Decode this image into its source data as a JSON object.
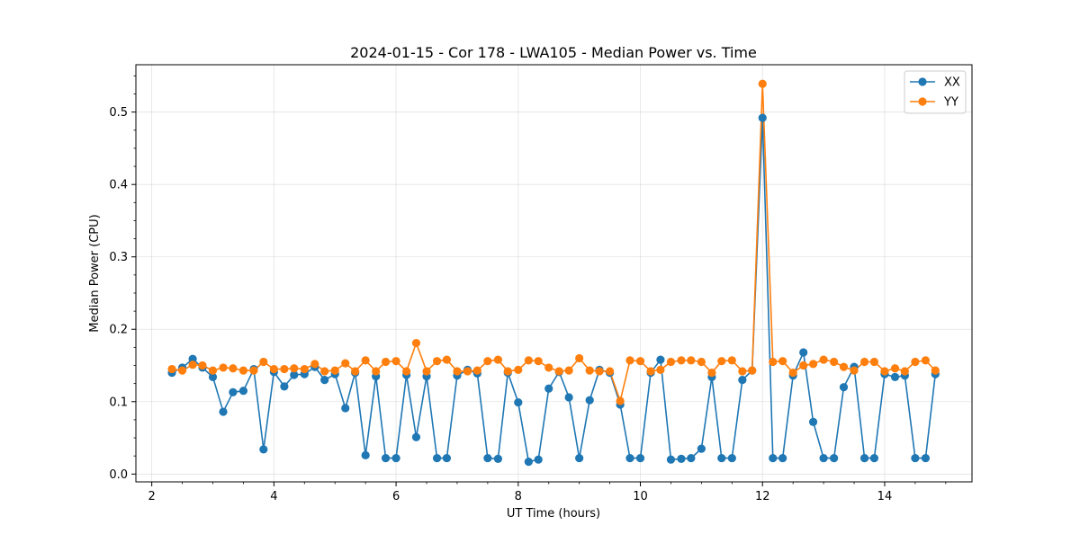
{
  "chart_data": {
    "type": "line",
    "title": "2024-01-15 - Cor 178 - LWA105 - Median Power vs. Time",
    "xlabel": "UT Time (hours)",
    "ylabel": "Median Power (CPU)",
    "xlim": [
      1.74,
      15.43
    ],
    "ylim": [
      -0.0108,
      0.5654
    ],
    "xticks": [
      2,
      4,
      6,
      8,
      10,
      12,
      14
    ],
    "yticks": [
      0.0,
      0.1,
      0.2,
      0.3,
      0.4,
      0.5
    ],
    "xtick_labels": [
      "2",
      "4",
      "6",
      "8",
      "10",
      "12",
      "14"
    ],
    "ytick_labels": [
      "0.0",
      "0.1",
      "0.2",
      "0.3",
      "0.4",
      "0.5"
    ],
    "grid": true,
    "legend_position": "upper right",
    "x": [
      2.33,
      2.5,
      2.67,
      2.83,
      3.0,
      3.17,
      3.33,
      3.5,
      3.67,
      3.83,
      4.0,
      4.17,
      4.33,
      4.5,
      4.67,
      4.83,
      5.0,
      5.17,
      5.33,
      5.5,
      5.67,
      5.83,
      6.0,
      6.17,
      6.33,
      6.5,
      6.67,
      6.83,
      7.0,
      7.17,
      7.33,
      7.5,
      7.67,
      7.83,
      8.0,
      8.17,
      8.33,
      8.5,
      8.67,
      8.83,
      9.0,
      9.17,
      9.33,
      9.5,
      9.67,
      9.83,
      10.0,
      10.17,
      10.33,
      10.5,
      10.67,
      10.83,
      11.0,
      11.17,
      11.33,
      11.5,
      11.67,
      11.83,
      12.0,
      12.17,
      12.33,
      12.5,
      12.67,
      12.83,
      13.0,
      13.17,
      13.33,
      13.5,
      13.67,
      13.83,
      14.0,
      14.17,
      14.33,
      14.5,
      14.67,
      14.83
    ],
    "series": [
      {
        "name": "XX",
        "color": "#1f77b4",
        "values": [
          0.14,
          0.147,
          0.159,
          0.147,
          0.134,
          0.086,
          0.113,
          0.115,
          0.145,
          0.034,
          0.141,
          0.121,
          0.137,
          0.138,
          0.148,
          0.13,
          0.138,
          0.091,
          0.14,
          0.026,
          0.135,
          0.022,
          0.022,
          0.137,
          0.051,
          0.135,
          0.022,
          0.022,
          0.136,
          0.144,
          0.139,
          0.022,
          0.021,
          0.14,
          0.099,
          0.017,
          0.02,
          0.118,
          0.141,
          0.106,
          0.022,
          0.102,
          0.144,
          0.14,
          0.096,
          0.022,
          0.022,
          0.14,
          0.158,
          0.02,
          0.021,
          0.022,
          0.035,
          0.134,
          0.022,
          0.022,
          0.13,
          0.143,
          0.492,
          0.022,
          0.022,
          0.136,
          0.168,
          0.072,
          0.022,
          0.022,
          0.12,
          0.148,
          0.022,
          0.022,
          0.138,
          0.134,
          0.136,
          0.022,
          0.022,
          0.138
        ]
      },
      {
        "name": "YY",
        "color": "#ff7f0e",
        "values": [
          0.145,
          0.143,
          0.151,
          0.15,
          0.143,
          0.147,
          0.146,
          0.143,
          0.143,
          0.155,
          0.145,
          0.145,
          0.146,
          0.145,
          0.152,
          0.142,
          0.143,
          0.153,
          0.142,
          0.157,
          0.142,
          0.155,
          0.156,
          0.142,
          0.181,
          0.142,
          0.156,
          0.158,
          0.142,
          0.142,
          0.143,
          0.156,
          0.158,
          0.142,
          0.144,
          0.157,
          0.156,
          0.147,
          0.142,
          0.143,
          0.16,
          0.143,
          0.142,
          0.142,
          0.101,
          0.157,
          0.156,
          0.142,
          0.144,
          0.155,
          0.157,
          0.157,
          0.155,
          0.14,
          0.156,
          0.157,
          0.142,
          0.143,
          0.539,
          0.155,
          0.156,
          0.14,
          0.15,
          0.152,
          0.158,
          0.155,
          0.148,
          0.143,
          0.155,
          0.155,
          0.142,
          0.146,
          0.142,
          0.155,
          0.157,
          0.143
        ]
      }
    ]
  }
}
